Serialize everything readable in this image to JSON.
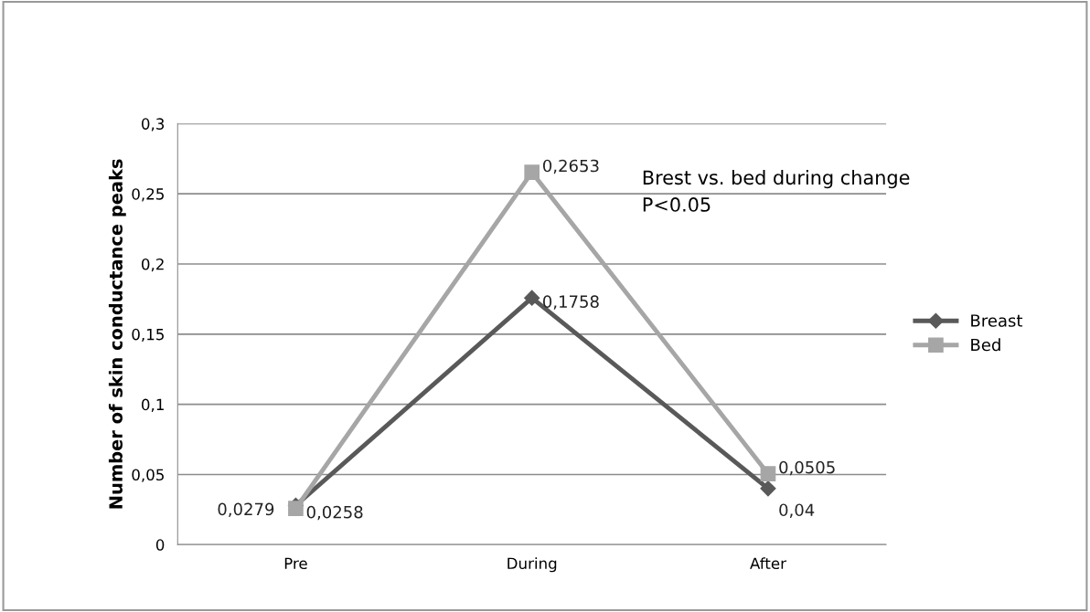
{
  "chart_data": {
    "type": "line",
    "ylabel": "Number of skin conductance peaks",
    "categories": [
      "Pre",
      "During",
      "After"
    ],
    "series": [
      {
        "name": "Breast",
        "color": "#595959",
        "marker": "diamond",
        "values": [
          0.0279,
          0.1758,
          0.04
        ],
        "value_labels": [
          "0,0279",
          "0,1758",
          "0,04"
        ]
      },
      {
        "name": "Bed",
        "color": "#a6a6a6",
        "marker": "square",
        "values": [
          0.0258,
          0.2653,
          0.0505
        ],
        "value_labels": [
          "0,0258",
          "0,2653",
          "0,0505"
        ]
      }
    ],
    "ylim": [
      0,
      0.3
    ],
    "yticks": [
      {
        "value": 0,
        "label": "0"
      },
      {
        "value": 0.05,
        "label": "0,05"
      },
      {
        "value": 0.1,
        "label": "0,1"
      },
      {
        "value": 0.15,
        "label": "0,15"
      },
      {
        "value": 0.2,
        "label": "0,2"
      },
      {
        "value": 0.25,
        "label": "0,25"
      },
      {
        "value": 0.3,
        "label": "0,3"
      }
    ],
    "grid": "y",
    "legend": "right",
    "annotations": [
      "Brest vs. bed during change\nP<0.05"
    ]
  }
}
